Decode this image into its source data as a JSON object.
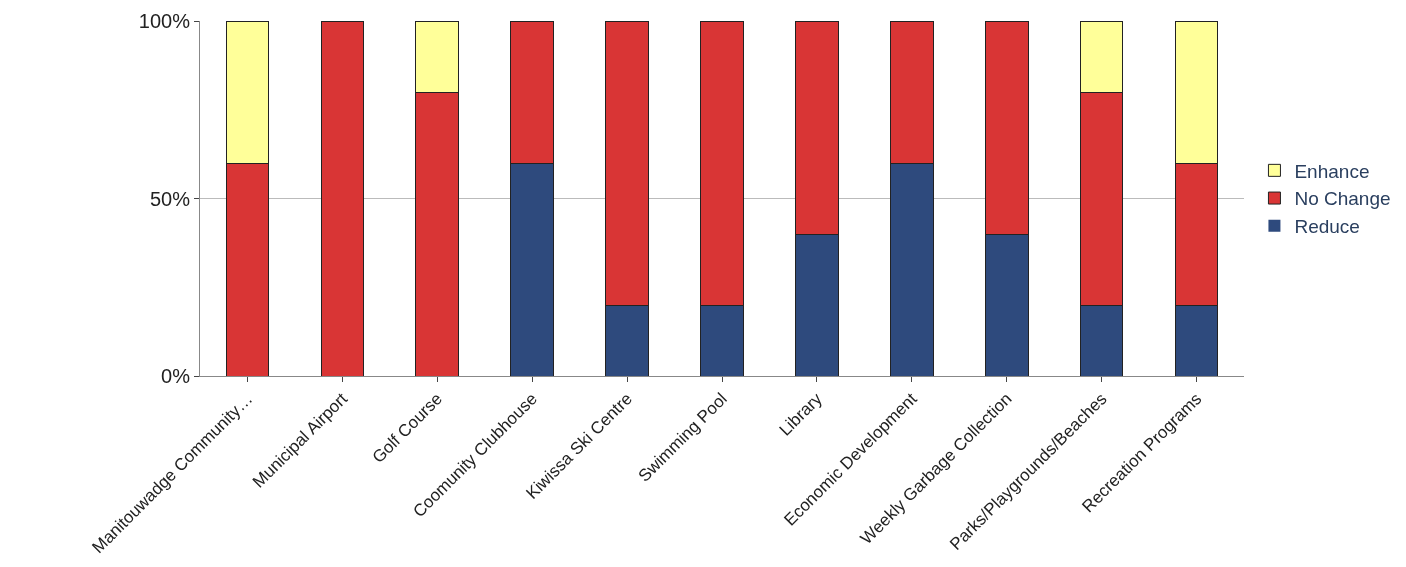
{
  "chart_data": {
    "type": "bar",
    "stacked": true,
    "categories": [
      "Manitouwadge Community…",
      "Municipal Airport",
      "Golf Course",
      "Coomunity Clubhouse",
      "Kiwissa Ski Centre",
      "Swimming Pool",
      "Library",
      "Economic Development",
      "Weekly Garbage Collection",
      "Parks/Playgrounds/Beaches",
      "Recreation Programs"
    ],
    "series": [
      {
        "name": "Reduce",
        "color": "#2e4a7d",
        "values": [
          0,
          0,
          0,
          60,
          20,
          20,
          40,
          60,
          40,
          20,
          20
        ]
      },
      {
        "name": "No Change",
        "color": "#d93535",
        "values": [
          60,
          100,
          80,
          40,
          80,
          80,
          60,
          40,
          60,
          60,
          40
        ]
      },
      {
        "name": "Enhance",
        "color": "#ffff99",
        "values": [
          40,
          0,
          20,
          0,
          0,
          0,
          0,
          0,
          0,
          20,
          40
        ]
      }
    ],
    "ylim": [
      0,
      100
    ],
    "yticks": [
      {
        "value": 0,
        "label": "0%"
      },
      {
        "value": 50,
        "label": "50%"
      },
      {
        "value": 100,
        "label": "100%"
      }
    ],
    "grid": "y",
    "legend": "right"
  }
}
